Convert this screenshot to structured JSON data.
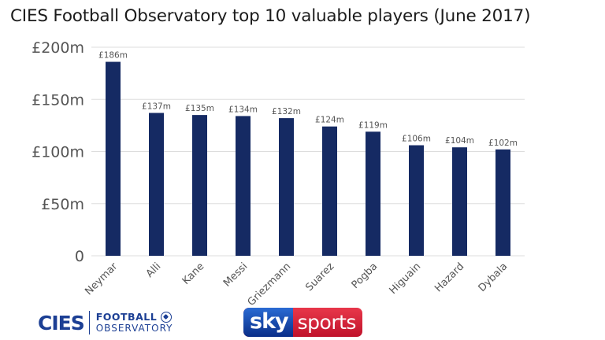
{
  "title": "CIES Football Observatory top 10 valuable players (June 2017)",
  "colors": {
    "bar": "#152a63",
    "axis_text": "#555555",
    "grid": "#dddddd"
  },
  "chart_data": {
    "type": "bar",
    "categories": [
      "Neymar",
      "Alli",
      "Kane",
      "Messi",
      "Griezmann",
      "Suarez",
      "Pogba",
      "Higuain",
      "Hazard",
      "Dybala"
    ],
    "values": [
      186,
      137,
      135,
      134,
      132,
      124,
      119,
      106,
      104,
      102
    ],
    "value_labels": [
      "£186m",
      "£137m",
      "£135m",
      "£134m",
      "£132m",
      "£124m",
      "£119m",
      "£106m",
      "£104m",
      "£102m"
    ],
    "ylim": [
      0,
      200
    ],
    "yticks": [
      0,
      50,
      100,
      150,
      200
    ],
    "ytick_labels": [
      "0",
      "£50m",
      "£100m",
      "£150m",
      "£200m"
    ],
    "grid": true
  },
  "logos": {
    "cies_word": "CIES",
    "cies_line1": "FOOTBALL",
    "cies_line2": "OBSERVATORY",
    "sky_word": "sky",
    "sports_word": "sports"
  }
}
